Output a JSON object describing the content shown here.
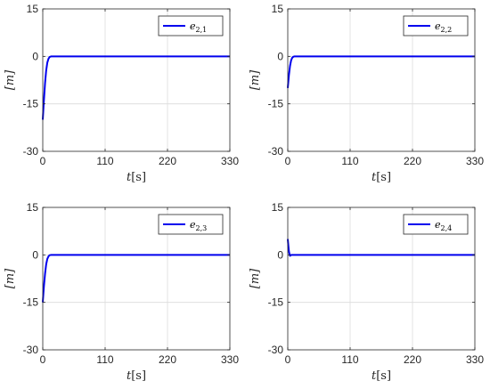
{
  "chart_data": [
    {
      "type": "line",
      "series": [
        {
          "name": "e_{2,1}",
          "name_base": "e",
          "name_sub": "2,1",
          "color": "#0000ee",
          "x": [
            0,
            2,
            4,
            6,
            8,
            10,
            12,
            15,
            20,
            330
          ],
          "y": [
            -20,
            -14,
            -8.5,
            -4.5,
            -2,
            -0.8,
            -0.2,
            0,
            0,
            0
          ]
        }
      ],
      "xlim": [
        0,
        330
      ],
      "ylim": [
        -30,
        15
      ],
      "xticks": [
        0,
        110,
        220,
        330
      ],
      "yticks": [
        -30,
        -15,
        0,
        15
      ],
      "xlabel_base": "t",
      "xlabel_unit": "[s]",
      "ylabel": "[m]",
      "grid": true,
      "legend_position": "top-right"
    },
    {
      "type": "line",
      "series": [
        {
          "name": "e_{2,2}",
          "name_base": "e",
          "name_sub": "2,2",
          "color": "#0000ee",
          "x": [
            0,
            2,
            4,
            6,
            8,
            10,
            12,
            330
          ],
          "y": [
            -10,
            -6,
            -3,
            -1.2,
            -0.4,
            -0.1,
            0,
            0
          ]
        }
      ],
      "xlim": [
        0,
        330
      ],
      "ylim": [
        -30,
        15
      ],
      "xticks": [
        0,
        110,
        220,
        330
      ],
      "yticks": [
        -30,
        -15,
        0,
        15
      ],
      "xlabel_base": "t",
      "xlabel_unit": "[s]",
      "ylabel": "[m]",
      "grid": true,
      "legend_position": "top-right"
    },
    {
      "type": "line",
      "series": [
        {
          "name": "e_{2,3}",
          "name_base": "e",
          "name_sub": "2,3",
          "color": "#0000ee",
          "x": [
            0,
            2,
            4,
            6,
            8,
            10,
            12,
            15,
            330
          ],
          "y": [
            -15,
            -10,
            -6,
            -3,
            -1.3,
            -0.5,
            -0.1,
            0,
            0
          ]
        }
      ],
      "xlim": [
        0,
        330
      ],
      "ylim": [
        -30,
        15
      ],
      "xticks": [
        0,
        110,
        220,
        330
      ],
      "yticks": [
        -30,
        -15,
        0,
        15
      ],
      "xlabel_base": "t",
      "xlabel_unit": "[s]",
      "ylabel": "[m]",
      "grid": true,
      "legend_position": "top-right"
    },
    {
      "type": "line",
      "series": [
        {
          "name": "e_{2,4}",
          "name_base": "e",
          "name_sub": "2,4",
          "color": "#0000ee",
          "x": [
            0,
            1,
            2,
            3,
            4,
            5,
            6,
            8,
            330
          ],
          "y": [
            5,
            3,
            1.2,
            0.3,
            -0.3,
            -0.2,
            0,
            0,
            0
          ]
        }
      ],
      "xlim": [
        0,
        330
      ],
      "ylim": [
        -30,
        15
      ],
      "xticks": [
        0,
        110,
        220,
        330
      ],
      "yticks": [
        -30,
        -15,
        0,
        15
      ],
      "xlabel_base": "t",
      "xlabel_unit": "[s]",
      "ylabel": "[m]",
      "grid": true,
      "legend_position": "top-right"
    }
  ]
}
